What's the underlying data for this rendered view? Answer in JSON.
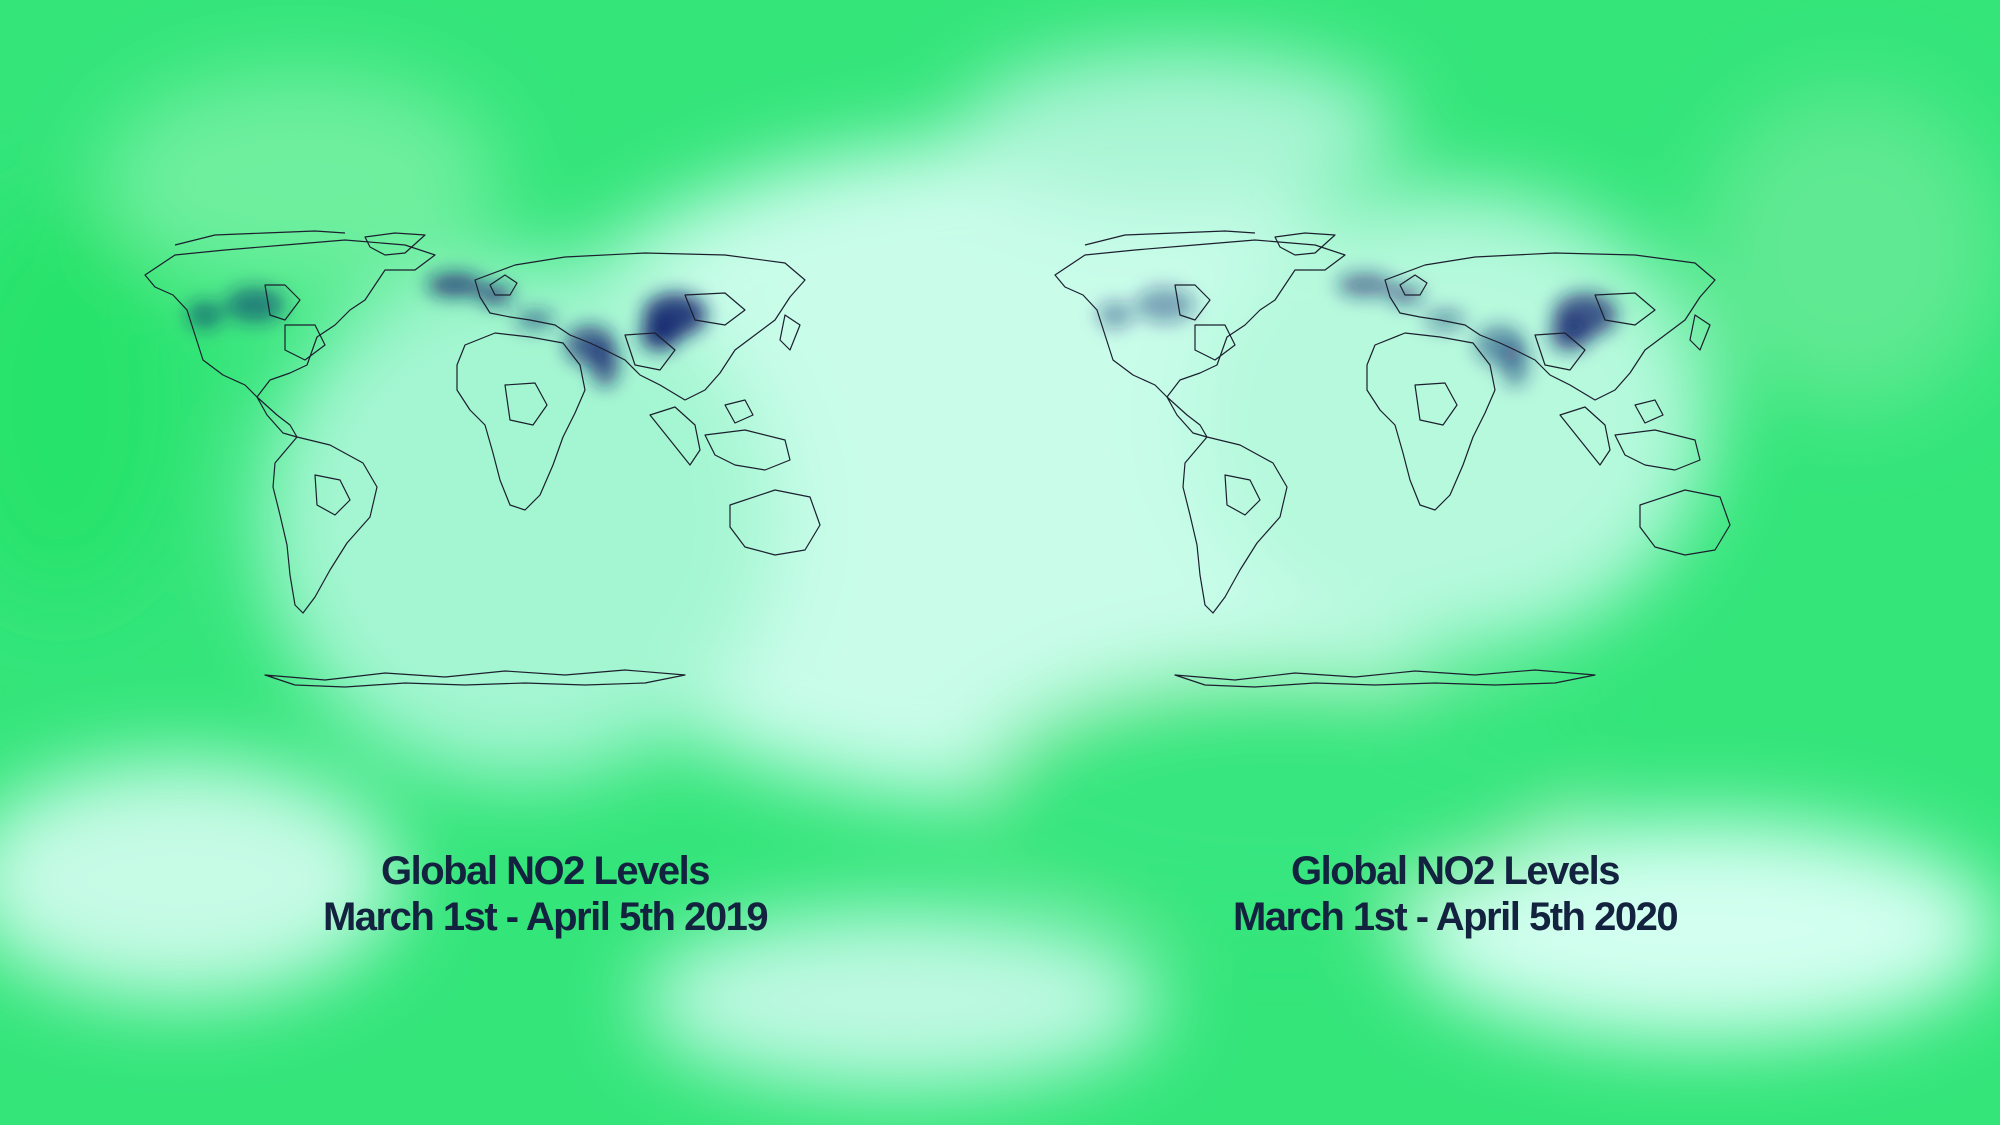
{
  "background": {
    "colors": {
      "green": "#2fe571",
      "mint": "#8ff6c4",
      "pale": "#d8fff0",
      "ink": "#13233f",
      "no2": "#0c1f6b"
    }
  },
  "maps": [
    {
      "id": "2019",
      "caption_line1": "Global NO2 Levels",
      "caption_line2": "March 1st - April 5th 2019",
      "hotspot_intensity": {
        "east_china": 1.0,
        "europe": 0.85,
        "india": 0.8,
        "usa": 0.6,
        "middle_east": 0.6
      }
    },
    {
      "id": "2020",
      "caption_line1": "Global NO2 Levels",
      "caption_line2": "March 1st - April 5th 2020",
      "hotspot_intensity": {
        "east_china": 0.85,
        "europe": 0.65,
        "india": 0.55,
        "usa": 0.45,
        "middle_east": 0.5
      }
    }
  ]
}
